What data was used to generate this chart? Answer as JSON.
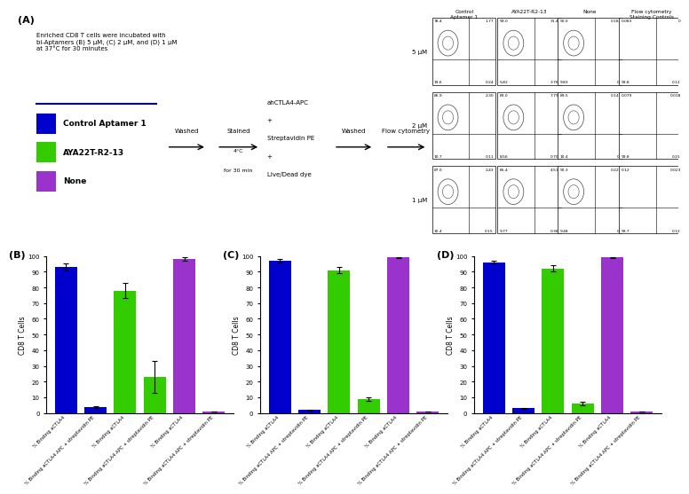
{
  "panel_A_label": "(A)",
  "panel_B_label": "(B)",
  "panel_C_label": "(C)",
  "panel_D_label": "(D)",
  "description_text": "Enriched CD8 T cells were incubated with\nbi-Aptamers (B) 5 μM, (C) 2 μM, and (D) 1 μM\nat 37°C for 30 minutes",
  "legend_items": [
    {
      "label": "Control Aptamer 1",
      "color": "#0000cc"
    },
    {
      "label": "AYA22T-R2-13",
      "color": "#33cc00"
    },
    {
      "label": "None",
      "color": "#9933cc"
    }
  ],
  "flow_col_headers": [
    "Control\nAptamer 1",
    "AYA22T-R2-13",
    "None",
    "Flow cytometry\nStaining Controls"
  ],
  "flow_row_labels": [
    "5 μM",
    "2 μM",
    "1 μM"
  ],
  "quad_values": [
    [
      [
        "78.4",
        "1.77",
        "19.6",
        "0.24"
      ],
      [
        "59.0",
        "31.4",
        "5.82",
        "3.76"
      ],
      [
        "90.0",
        "0.18",
        "9.83",
        "0"
      ],
      [
        "0.083",
        "0",
        "99.8",
        "0.12"
      ]
    ],
    [
      [
        "86.9",
        "2.30",
        "10.7",
        "0.11"
      ],
      [
        "83.0",
        "7.79",
        "8.56",
        "0.70"
      ],
      [
        "89.5",
        "0.14",
        "10.4",
        "0"
      ],
      [
        "0.079",
        "0.018",
        "99.8",
        "0.15"
      ]
    ],
    [
      [
        "87.0",
        "2.43",
        "10.4",
        "0.15"
      ],
      [
        "85.4",
        "4.51",
        "9.77",
        "0.36"
      ],
      [
        "90.3",
        "0.22",
        "9.48",
        "0"
      ],
      [
        "0.12",
        "0.023",
        "99.7",
        "0.12"
      ]
    ]
  ],
  "bar_B_values": [
    93,
    4,
    78,
    23,
    98,
    1
  ],
  "bar_B_errors": [
    2,
    0.5,
    5,
    10,
    1,
    0.2
  ],
  "bar_C_values": [
    97,
    2,
    91,
    9,
    99,
    1
  ],
  "bar_C_errors": [
    1,
    0.3,
    2,
    1,
    0.5,
    0.1
  ],
  "bar_D_values": [
    96,
    3,
    92,
    6,
    99,
    1
  ],
  "bar_D_errors": [
    1,
    0.4,
    2,
    1,
    0.5,
    0.1
  ],
  "bar_colors": [
    "#0000cc",
    "#0000cc",
    "#33cc00",
    "#33cc00",
    "#9933cc",
    "#9933cc"
  ],
  "ylabel": "CD8 T Cells",
  "ylim": [
    0,
    100
  ],
  "yticks": [
    0,
    10,
    20,
    30,
    40,
    50,
    60,
    70,
    80,
    90,
    100
  ],
  "background_color": "#ffffff"
}
